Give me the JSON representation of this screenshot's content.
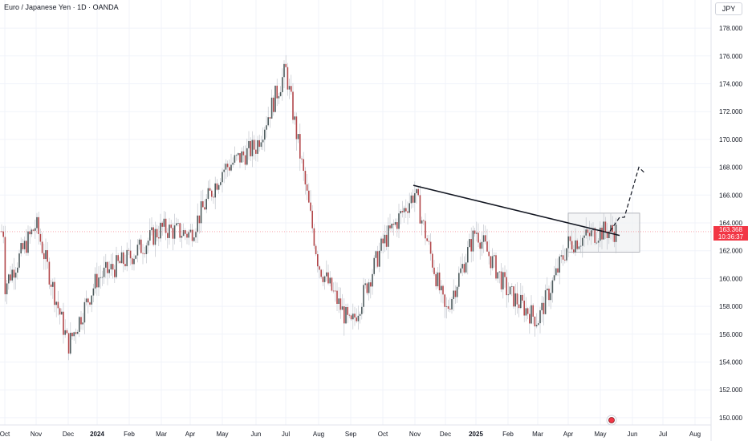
{
  "header": {
    "title": "Euro / Japanese Yen · 1D · OANDA",
    "currency": "JPY"
  },
  "price_tag": {
    "price": "163.368",
    "countdown": "10:36:37",
    "color": "#f23645"
  },
  "colors": {
    "up": "#22ab94",
    "down": "#f23645",
    "candle_dark": "#4e5c5e",
    "candle_red": "#b2474a",
    "box": "#e8eaed"
  },
  "chart_data": {
    "type": "candlestick",
    "instrument": "Euro / Japanese Yen",
    "interval": "1D",
    "source": "OANDA",
    "y_axis": {
      "range": [
        149,
        179
      ],
      "ticks": [
        150,
        152,
        154,
        156,
        158,
        160,
        162,
        164,
        166,
        168,
        170,
        172,
        174,
        176,
        178
      ],
      "tick_labels": [
        "150.000",
        "152.000",
        "154.000",
        "156.000",
        "158.000",
        "160.000",
        "162.000",
        "164.000",
        "166.000",
        "168.000",
        "170.000",
        "172.000",
        "174.000",
        "176.000",
        "178.000"
      ]
    },
    "x_axis": {
      "labels": [
        "Oct",
        "Nov",
        "Dec",
        "2024",
        "Feb",
        "Mar",
        "Apr",
        "May",
        "Jun",
        "Jul",
        "Aug",
        "Sep",
        "Oct",
        "Nov",
        "Dec",
        "2025",
        "Feb",
        "Mar",
        "Apr",
        "May",
        "Jun",
        "Jul",
        "Aug"
      ],
      "bold": [
        "2024",
        "2025"
      ]
    },
    "price_path": [
      {
        "month": "Oct",
        "close": 159.5
      },
      {
        "month": "Nov",
        "close": 163.9
      },
      {
        "month": "Dec",
        "close": 155.2
      },
      {
        "month": "2024",
        "close": 160.0
      },
      {
        "month": "Feb",
        "close": 161.5
      },
      {
        "month": "Mar",
        "close": 163.6
      },
      {
        "month": "Apr",
        "close": 163.2
      },
      {
        "month": "May",
        "close": 167.8
      },
      {
        "month": "Jun",
        "close": 169.5
      },
      {
        "month": "Jul",
        "close": 175.0
      },
      {
        "month": "Aug",
        "close": 161.0
      },
      {
        "month": "Sep",
        "close": 156.5
      },
      {
        "month": "Oct",
        "close": 162.5
      },
      {
        "month": "Nov",
        "close": 166.2
      },
      {
        "month": "Dec",
        "close": 157.5
      },
      {
        "month": "2025",
        "close": 163.5
      },
      {
        "month": "Feb",
        "close": 159.0
      },
      {
        "month": "Mar",
        "close": 157.0
      },
      {
        "month": "Apr",
        "close": 162.5
      },
      {
        "month": "May",
        "close": 163.4
      }
    ],
    "current_price": 163.368,
    "annotations": {
      "trendline": {
        "from": {
          "month": "Nov",
          "price": 166.7
        },
        "to": {
          "month": "May",
          "price": 163.1
        }
      },
      "consolidation_box": {
        "price_range": [
          161.9,
          164.7
        ],
        "months": [
          "Apr",
          "May"
        ]
      },
      "projection_path": [
        163.4,
        164.4,
        164.4,
        168.0,
        167.6
      ]
    }
  }
}
